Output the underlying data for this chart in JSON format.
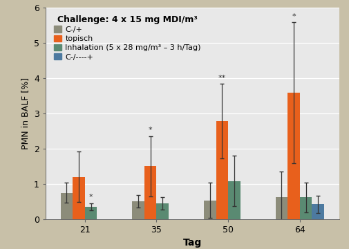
{
  "title": "Challenge: 4 x 15 mg MDI/m³",
  "xlabel": "Tag",
  "ylabel": "PMN in BALF [%]",
  "categories": [
    21,
    35,
    50,
    64
  ],
  "series": [
    {
      "name": "C-/+",
      "color": "#8c8c7a",
      "values": [
        0.75,
        0.5,
        0.53,
        0.62
      ],
      "errors": [
        0.28,
        0.18,
        0.5,
        0.72
      ]
    },
    {
      "name": "topisch",
      "color": "#e8601c",
      "values": [
        1.2,
        1.5,
        2.78,
        3.58
      ],
      "errors": [
        0.72,
        0.85,
        1.05,
        2.0
      ]
    },
    {
      "name": "Inhalation (5 x 28 mg/m³ – 3 h/Tag)",
      "color": "#5a8a72",
      "values": [
        0.35,
        0.45,
        1.08,
        0.62
      ],
      "errors": [
        0.1,
        0.18,
        0.72,
        0.42
      ]
    },
    {
      "name": "C-/----+",
      "color": "#4d7aa0",
      "values": [
        null,
        null,
        null,
        0.42
      ],
      "errors": [
        null,
        null,
        null,
        0.25
      ]
    }
  ],
  "ylim": [
    0,
    6
  ],
  "yticks": [
    0,
    1,
    2,
    3,
    4,
    5,
    6
  ],
  "bar_width": 0.17,
  "fig_bg_color": "#c8c0a8",
  "plot_bg_color": "#e8e8e8",
  "annotation_fontsize": 8,
  "legend_title_fontsize": 9,
  "legend_fontsize": 8,
  "tick_fontsize": 9,
  "xlabel_fontsize": 10,
  "ylabel_fontsize": 9
}
